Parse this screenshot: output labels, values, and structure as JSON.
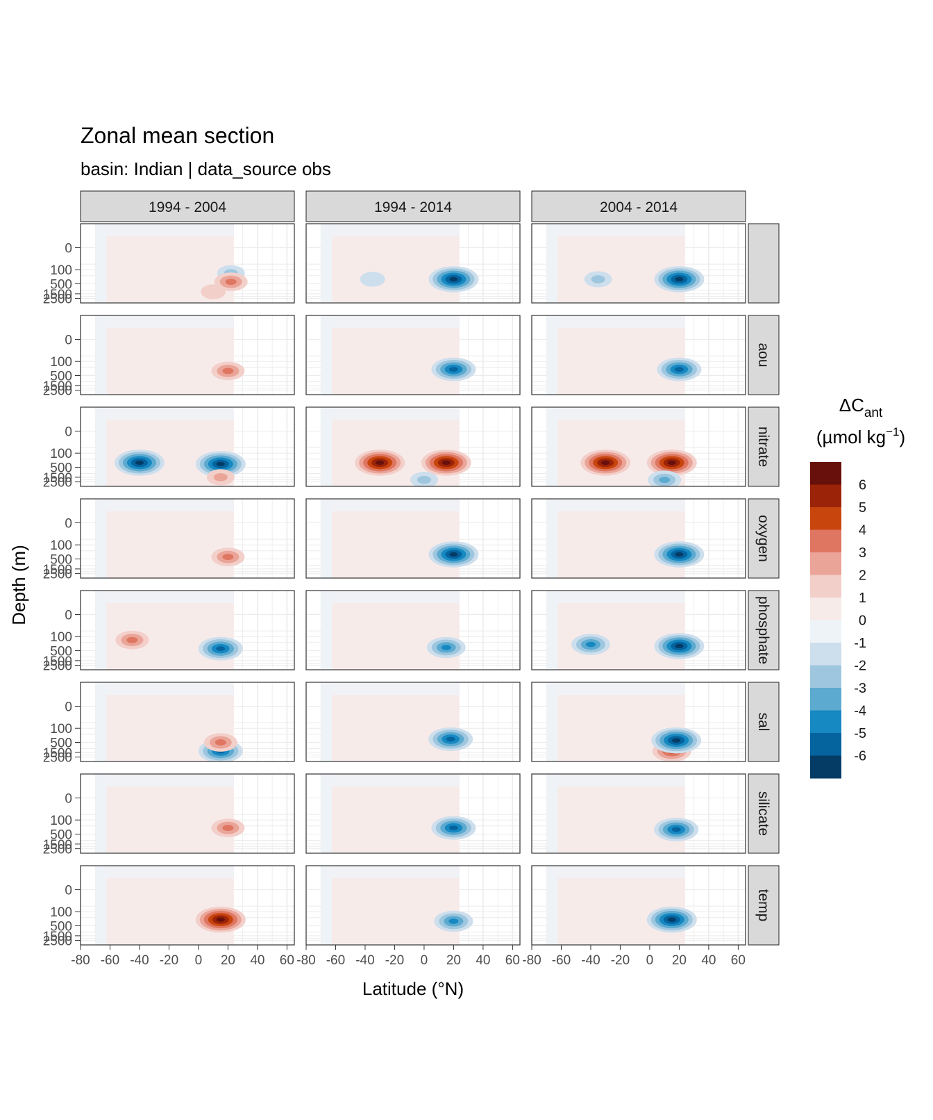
{
  "chart_data": {
    "type": "heatmap",
    "title": "Zonal mean section",
    "subtitle": "basin: Indian | data_source obs",
    "xlabel": "Latitude (°N)",
    "ylabel": "Depth (m)",
    "xlim": [
      -80,
      65
    ],
    "x_ticks": [
      "-80",
      "-60",
      "-40",
      "-20",
      "0",
      "20",
      "40",
      "60"
    ],
    "y_ticks": [
      "0",
      "100",
      "500",
      "1500",
      "2500"
    ],
    "data_lat_range": [
      -70,
      24
    ],
    "column_facets": [
      "1994 - 2004",
      "1994 - 2014",
      "2004 - 2014"
    ],
    "row_facets": [
      "",
      "aou",
      "nitrate",
      "oxygen",
      "phosphate",
      "sal",
      "silicate",
      "temp"
    ],
    "legend": {
      "title_main": "ΔC",
      "title_sub": "ant",
      "unit_pre": "(µmol kg",
      "unit_sup": "−1",
      "unit_post": ")",
      "labels": [
        "6",
        "5",
        "4",
        "3",
        "2",
        "1",
        "0",
        "-1",
        "-2",
        "-3",
        "-4",
        "-5",
        "-6"
      ],
      "colors": [
        "#67100c",
        "#9b2308",
        "#c8450e",
        "#df7661",
        "#eaa498",
        "#f3cfca",
        "#f7ebea",
        "#eef3f7",
        "#cddeec",
        "#9ec7df",
        "#5caad0",
        "#1688c2",
        "#05639e",
        "#043c66"
      ],
      "position": "right"
    },
    "features": [
      {
        "panel": [
          0,
          0
        ],
        "lat": 22,
        "depth": 150,
        "value": -2
      },
      {
        "panel": [
          0,
          0
        ],
        "lat": 22,
        "depth": 400,
        "value": 3
      },
      {
        "panel": [
          0,
          0
        ],
        "lat": 10,
        "depth": 1200,
        "value": 1.5
      },
      {
        "panel": [
          0,
          1
        ],
        "lat": -35,
        "depth": 300,
        "value": -1.5
      },
      {
        "panel": [
          0,
          1
        ],
        "lat": 20,
        "depth": 300,
        "value": -6
      },
      {
        "panel": [
          0,
          2
        ],
        "lat": -35,
        "depth": 300,
        "value": -2
      },
      {
        "panel": [
          0,
          2
        ],
        "lat": 20,
        "depth": 300,
        "value": -6
      },
      {
        "panel": [
          1,
          0
        ],
        "lat": 20,
        "depth": 300,
        "value": 3
      },
      {
        "panel": [
          1,
          1
        ],
        "lat": 20,
        "depth": 250,
        "value": -5
      },
      {
        "panel": [
          1,
          2
        ],
        "lat": 20,
        "depth": 250,
        "value": -5
      },
      {
        "panel": [
          2,
          0
        ],
        "lat": -40,
        "depth": 300,
        "value": -6
      },
      {
        "panel": [
          2,
          0
        ],
        "lat": 15,
        "depth": 350,
        "value": -6
      },
      {
        "panel": [
          2,
          0
        ],
        "lat": 15,
        "depth": 1500,
        "value": 2
      },
      {
        "panel": [
          2,
          1
        ],
        "lat": -30,
        "depth": 300,
        "value": 6
      },
      {
        "panel": [
          2,
          1
        ],
        "lat": 15,
        "depth": 300,
        "value": 6
      },
      {
        "panel": [
          2,
          1
        ],
        "lat": 0,
        "depth": 2000,
        "value": -2
      },
      {
        "panel": [
          2,
          2
        ],
        "lat": -30,
        "depth": 300,
        "value": 6
      },
      {
        "panel": [
          2,
          2
        ],
        "lat": 15,
        "depth": 300,
        "value": 6
      },
      {
        "panel": [
          2,
          2
        ],
        "lat": 10,
        "depth": 2000,
        "value": -3
      },
      {
        "panel": [
          3,
          0
        ],
        "lat": 20,
        "depth": 400,
        "value": 3
      },
      {
        "panel": [
          3,
          1
        ],
        "lat": 20,
        "depth": 300,
        "value": -6
      },
      {
        "panel": [
          3,
          2
        ],
        "lat": 20,
        "depth": 300,
        "value": -6
      },
      {
        "panel": [
          4,
          0
        ],
        "lat": -45,
        "depth": 150,
        "value": 3
      },
      {
        "panel": [
          4,
          0
        ],
        "lat": 15,
        "depth": 400,
        "value": -5
      },
      {
        "panel": [
          4,
          1
        ],
        "lat": 15,
        "depth": 350,
        "value": -4
      },
      {
        "panel": [
          4,
          2
        ],
        "lat": -40,
        "depth": 250,
        "value": -4
      },
      {
        "panel": [
          4,
          2
        ],
        "lat": 20,
        "depth": 300,
        "value": -6
      },
      {
        "panel": [
          5,
          0
        ],
        "lat": 15,
        "depth": 1300,
        "value": -5
      },
      {
        "panel": [
          5,
          0
        ],
        "lat": 15,
        "depth": 500,
        "value": 3
      },
      {
        "panel": [
          5,
          1
        ],
        "lat": 18,
        "depth": 350,
        "value": -5
      },
      {
        "panel": [
          5,
          2
        ],
        "lat": 15,
        "depth": 1300,
        "value": 4
      },
      {
        "panel": [
          5,
          2
        ],
        "lat": 18,
        "depth": 400,
        "value": -6
      },
      {
        "panel": [
          6,
          0
        ],
        "lat": 20,
        "depth": 250,
        "value": 3
      },
      {
        "panel": [
          6,
          1
        ],
        "lat": 20,
        "depth": 250,
        "value": -5
      },
      {
        "panel": [
          6,
          2
        ],
        "lat": 18,
        "depth": 300,
        "value": -5
      },
      {
        "panel": [
          7,
          0
        ],
        "lat": 15,
        "depth": 250,
        "value": 6
      },
      {
        "panel": [
          7,
          1
        ],
        "lat": 20,
        "depth": 300,
        "value": -4
      },
      {
        "panel": [
          7,
          2
        ],
        "lat": 15,
        "depth": 250,
        "value": -6
      }
    ]
  }
}
